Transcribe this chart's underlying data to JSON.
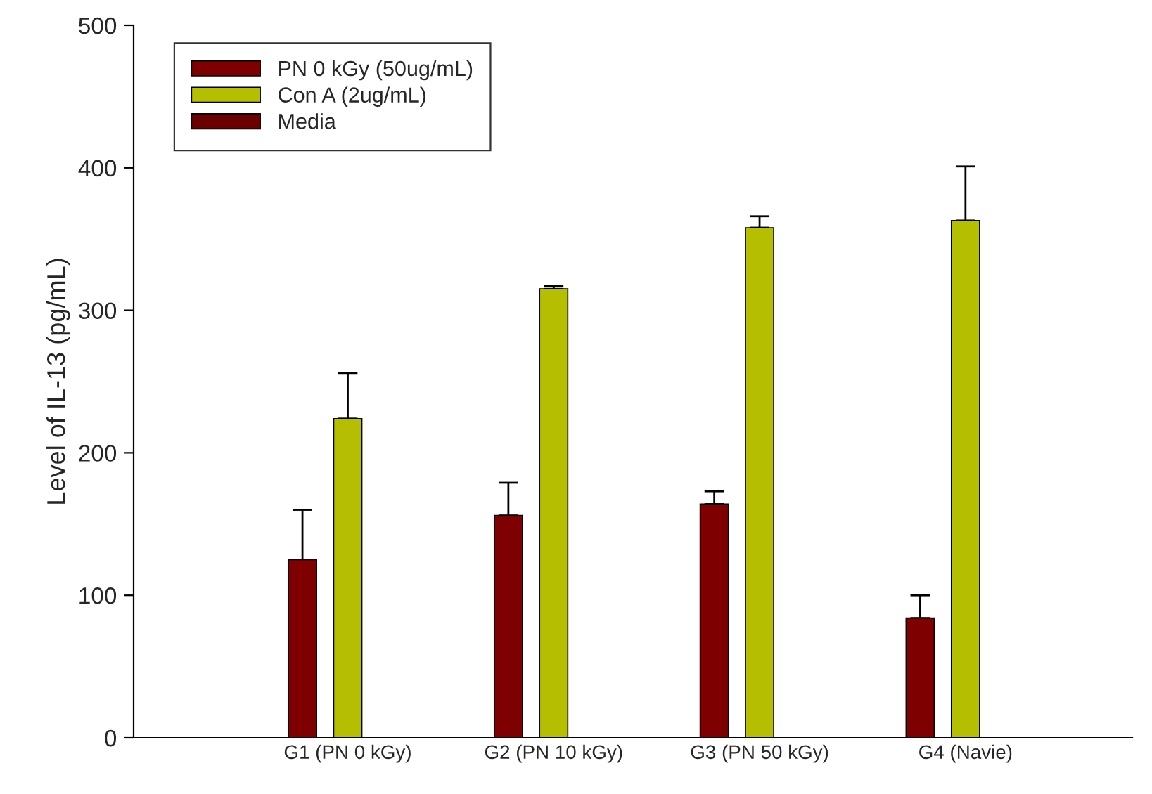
{
  "chart_data": {
    "type": "bar",
    "ylabel": "Level of IL-13 (pg/mL)",
    "categories": [
      "G1 (PN 0 kGy)",
      "G2 (PN 10 kGy)",
      "G3 (PN 50 kGy)",
      "G4 (Navie)"
    ],
    "series": [
      {
        "name": "PN 0 kGy (50ug/mL)",
        "color": "#7f0000",
        "values": [
          125,
          156,
          164,
          84
        ],
        "errors": [
          [
            125,
            160
          ],
          [
            156,
            179
          ],
          [
            164,
            173
          ],
          [
            84,
            100
          ]
        ]
      },
      {
        "name": "Con A (2ug/mL)",
        "color": "#b5bf00",
        "values": [
          224,
          315,
          358,
          363
        ],
        "errors": [
          [
            224,
            256
          ],
          [
            315,
            317
          ],
          [
            358,
            366
          ],
          [
            363,
            401
          ]
        ]
      },
      {
        "name": "Media",
        "color": "#6b0000",
        "values": [
          null,
          null,
          null,
          null
        ]
      }
    ],
    "ylim": [
      0,
      500
    ],
    "yticks": [
      0,
      100,
      200,
      300,
      400,
      500
    ],
    "grid": false,
    "legend": "top left"
  }
}
